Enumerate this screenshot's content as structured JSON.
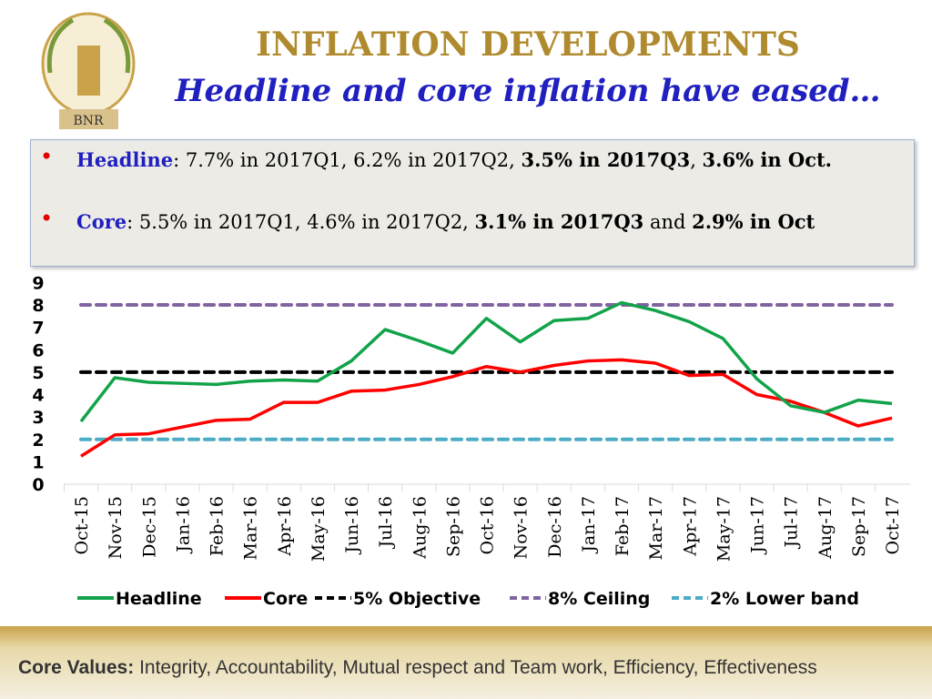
{
  "header": {
    "title": "INFLATION DEVELOPMENTS",
    "subtitle": "Headline and core inflation have eased…",
    "logo_text": "BNR"
  },
  "bullets": [
    {
      "label": "Headline",
      "text": ": 7.7% in 2017Q1, 6.2% in 2017Q2, ",
      "bold": "3.5% in 2017Q3",
      "text2": ", ",
      "bold2": "3.6% in Oct."
    },
    {
      "label": "Core",
      "text": ": 5.5% in 2017Q1, 4.6% in 2017Q2, ",
      "bold": "3.1% in 2017Q3",
      "text2": " and  ",
      "bold2": "2.9% in Oct"
    }
  ],
  "footer": {
    "label": "Core Values:",
    "text": " Integrity, Accountability, Mutual respect and Team work, Efficiency, Effectiveness"
  },
  "chart_data": {
    "type": "line",
    "categories": [
      "Oct-15",
      "Nov-15",
      "Dec-15",
      "Jan-16",
      "Feb-16",
      "Mar-16",
      "Apr-16",
      "May-16",
      "Jun-16",
      "Jul-16",
      "Aug-16",
      "Sep-16",
      "Oct-16",
      "Nov-16",
      "Dec-16",
      "Jan-17",
      "Feb-17",
      "Mar-17",
      "Apr-17",
      "May-17",
      "Jun-17",
      "Jul-17",
      "Aug-17",
      "Sep-17",
      "Oct-17"
    ],
    "ylim": [
      0,
      9
    ],
    "yticks": [
      "0",
      "1",
      "2",
      "3",
      "4",
      "5",
      "6",
      "7",
      "8",
      "9"
    ],
    "legend": "bottom",
    "grid": false,
    "series": [
      {
        "name": "Headline",
        "color": "#12a34a",
        "dashed": false,
        "values": [
          2.8,
          4.75,
          4.55,
          4.5,
          4.45,
          4.6,
          4.65,
          4.6,
          5.5,
          6.9,
          6.4,
          5.85,
          7.4,
          6.35,
          7.3,
          7.4,
          8.1,
          7.75,
          7.25,
          6.5,
          4.7,
          3.5,
          3.2,
          3.75,
          3.6
        ]
      },
      {
        "name": "Core",
        "color": "#ff0000",
        "dashed": false,
        "values": [
          1.25,
          2.2,
          2.25,
          2.55,
          2.85,
          2.9,
          3.65,
          3.65,
          4.15,
          4.2,
          4.45,
          4.8,
          5.25,
          5.0,
          5.3,
          5.5,
          5.55,
          5.4,
          4.85,
          4.9,
          4.0,
          3.7,
          3.2,
          2.6,
          2.95
        ]
      },
      {
        "name": "5% Objective",
        "color": "#000000",
        "dashed": true,
        "values": [
          5,
          5,
          5,
          5,
          5,
          5,
          5,
          5,
          5,
          5,
          5,
          5,
          5,
          5,
          5,
          5,
          5,
          5,
          5,
          5,
          5,
          5,
          5,
          5,
          5
        ]
      },
      {
        "name": "8% Ceiling",
        "color": "#8064a2",
        "dashed": true,
        "values": [
          8,
          8,
          8,
          8,
          8,
          8,
          8,
          8,
          8,
          8,
          8,
          8,
          8,
          8,
          8,
          8,
          8,
          8,
          8,
          8,
          8,
          8,
          8,
          8,
          8
        ]
      },
      {
        "name": "2% Lower band",
        "color": "#4bacc6",
        "dashed": true,
        "values": [
          2,
          2,
          2,
          2,
          2,
          2,
          2,
          2,
          2,
          2,
          2,
          2,
          2,
          2,
          2,
          2,
          2,
          2,
          2,
          2,
          2,
          2,
          2,
          2,
          2
        ]
      }
    ]
  }
}
